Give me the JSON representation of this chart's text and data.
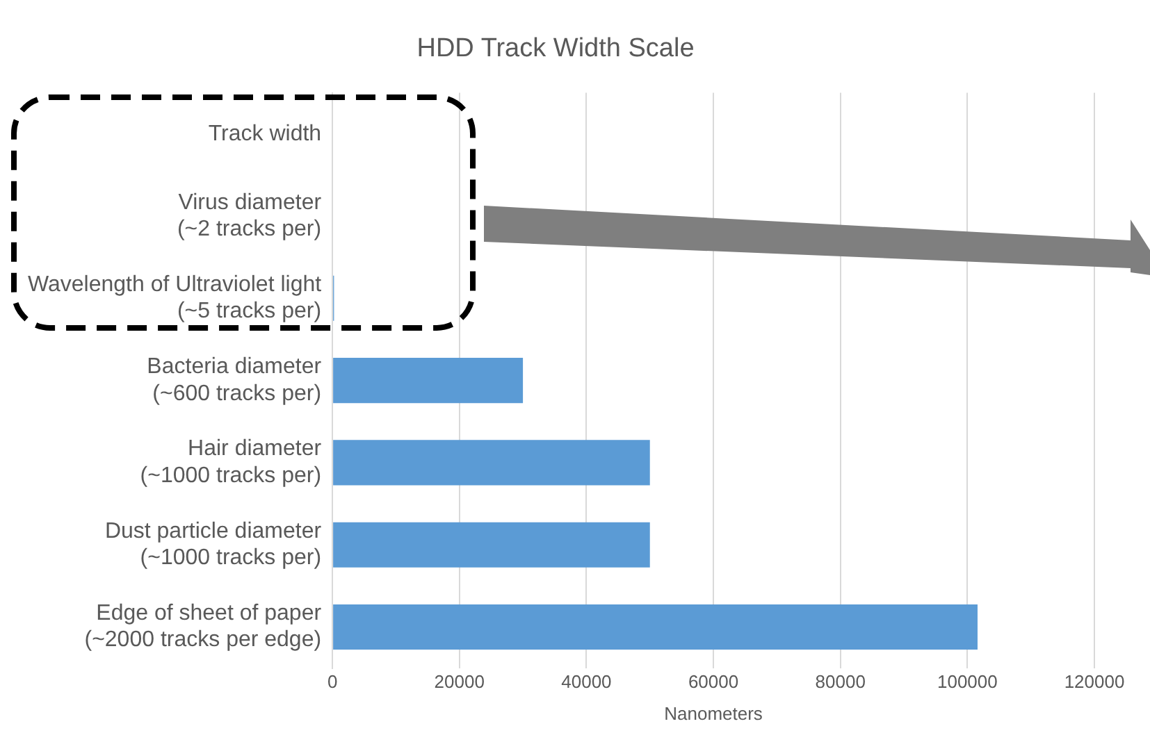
{
  "chart_data": {
    "type": "bar",
    "orientation": "horizontal",
    "title": "HDD Track Width Scale",
    "xlabel": "Nanometers",
    "categories": [
      "Track width",
      "Virus diameter\n(~2 tracks per)",
      "Wavelength of Ultraviolet light\n(~5 tracks per)",
      "Bacteria diameter\n(~600 tracks per)",
      "Hair diameter\n(~1000 tracks per)",
      "Dust particle diameter\n(~1000 tracks per)",
      "Edge of sheet of paper\n(~2000 tracks per edge)"
    ],
    "values": [
      null,
      null,
      250,
      30000,
      50000,
      50000,
      101600
    ],
    "color": "#5b9bd5",
    "xlim": [
      0,
      120000
    ],
    "xticks": [
      0,
      20000,
      40000,
      60000,
      80000,
      100000,
      120000
    ],
    "grid": "x",
    "legend": false
  }
}
